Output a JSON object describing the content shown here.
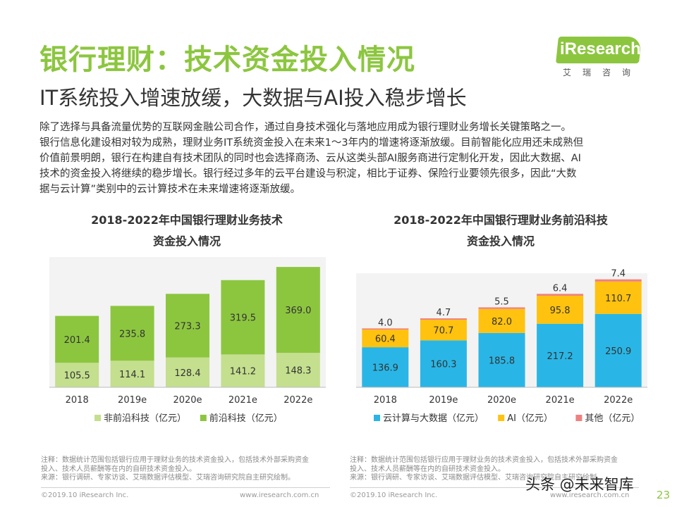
{
  "header": {
    "title": "银行理财：技术资金投入情况",
    "subtitle": "IT系统投入增速放缓，大数据与AI投入稳步增长"
  },
  "logo": {
    "text": "iResearch",
    "cn": "艾瑞咨询",
    "color": "#8cc63f"
  },
  "intro": [
    "除了选择与具备流量优势的互联网金融公司合作，通过自身技术强化与落地应用成为银行理财业务增长关键策略之一。",
    "银行信息化建设相对较为成熟，理财业务IT系统资金投入在未来1～3年内的增速将逐渐放缓。目前智能化应用还未成熟但",
    "价值前景明朗，银行在构建自有技术团队的同时也会选择商汤、云从这类头部AI服务商进行定制化开发，因此大数据、AI",
    "技术的资金投入将继续的稳步增长。银行经过多年的云平台建设与积淀，相比于证券、保险行业要领先很多，因此“大数",
    "据与云计算”类别中的云计算技术在未来增速将逐渐放缓。"
  ],
  "left_chart_title": [
    "2018-2022年中国银行理财业务技术",
    "资金投入情况"
  ],
  "right_chart_title": [
    "2018-2022年中国银行理财业务前沿科技",
    "资金投入情况"
  ],
  "chart_data": [
    {
      "type": "bar",
      "stacked": true,
      "title": "2018-2022年中国银行理财业务技术资金投入情况",
      "categories": [
        "2018",
        "2019e",
        "2020e",
        "2021e",
        "2022e"
      ],
      "series": [
        {
          "name": "非前沿科技（亿元）",
          "color": "#c4df8e",
          "values": [
            105.5,
            114.1,
            128.4,
            141.2,
            148.3
          ]
        },
        {
          "name": "前沿科技（亿元）",
          "color": "#8cc63f",
          "values": [
            201.4,
            235.8,
            273.3,
            319.5,
            369.0
          ]
        }
      ],
      "value_labels": [
        [
          "105.5",
          "114.1",
          "128.4",
          "141.2",
          "148.3"
        ],
        [
          "201.4",
          "235.8",
          "273.3",
          "319.5",
          "369.0"
        ]
      ],
      "ylim": [
        0,
        560
      ],
      "legend": "bottom"
    },
    {
      "type": "bar",
      "stacked": true,
      "title": "2018-2022年中国银行理财业务前沿科技资金投入情况",
      "categories": [
        "2018",
        "2019e",
        "2020e",
        "2021e",
        "2022e"
      ],
      "series": [
        {
          "name": "云计算与大数据（亿元）",
          "color": "#29b6e6",
          "values": [
            136.9,
            160.3,
            185.8,
            217.2,
            250.9
          ]
        },
        {
          "name": "AI（亿元）",
          "color": "#ffc20e",
          "values": [
            60.4,
            70.7,
            82.0,
            95.8,
            110.7
          ]
        },
        {
          "name": "其他（亿元）",
          "color": "#f08080",
          "values": [
            4.0,
            4.7,
            5.5,
            6.4,
            7.4
          ]
        }
      ],
      "value_labels": [
        [
          "136.9",
          "160.3",
          "185.8",
          "217.2",
          "250.9"
        ],
        [
          "60.4",
          "70.7",
          "82.0",
          "95.8",
          "110.7"
        ],
        [
          "4.0",
          "4.7",
          "5.5",
          "6.4",
          "7.4"
        ]
      ],
      "ylim": [
        0,
        390
      ],
      "legend": "bottom"
    }
  ],
  "notes": {
    "left": [
      "注释：数据统计范围包括银行应用于理财业务的技术资金投入，包括技术外部采购资金",
      "投入、技术人员薪酬等在内的自研技术资金投入。",
      "来源：银行调研、专家访谈、艾瑞数据评估模型、艾瑞咨询研究院自主研究绘制。"
    ],
    "right": [
      "注释：数据统计范围包括银行应用于理财业务的技术资金投入，包括技术外部采购资金",
      "投入、技术人员薪酬等在内的自研技术资金投入。",
      "来源：银行调研、专家访谈、艾瑞数据评估模型、艾瑞咨询研究院自主研究绘制。"
    ]
  },
  "footer": {
    "copyright": "©2019.10 iResearch Inc.",
    "url": "www.iresearch.com.cn"
  },
  "watermark": "头条 @未来智库",
  "page_number": "23"
}
